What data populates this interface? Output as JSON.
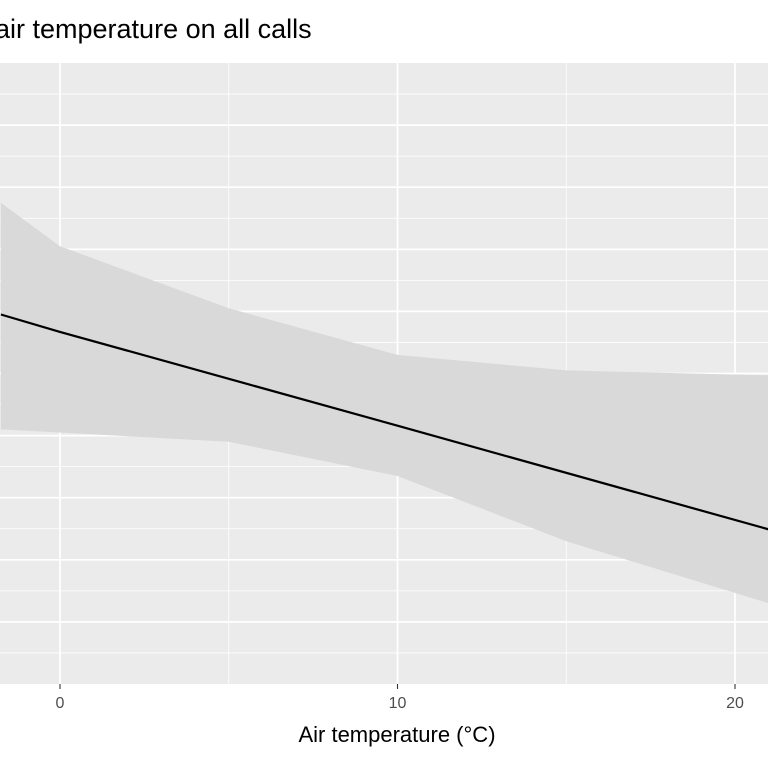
{
  "chart_data": {
    "type": "line",
    "title": "f air temperature on all calls",
    "xlabel": "Air temperature (°C)",
    "ylabel": "",
    "xlim": [
      -1.75,
      21.0
    ],
    "x_ticks": [
      0,
      10,
      20
    ],
    "x_tick_labels": [
      "0",
      "10",
      "20"
    ],
    "ylim": [
      0,
      10
    ],
    "grid": true,
    "series": [
      {
        "x": [
          -1.75,
          0,
          10,
          21.0
        ],
        "values": [
          5.95,
          5.67,
          4.16,
          2.49
        ]
      }
    ],
    "confidence_band": {
      "x": [
        -1.75,
        0,
        5,
        10,
        15,
        21.0
      ],
      "upper": [
        7.75,
        7.05,
        6.05,
        5.3,
        5.05,
        4.97
      ],
      "lower": [
        4.1,
        4.05,
        3.9,
        3.35,
        2.3,
        1.3
      ]
    },
    "colors": {
      "panel": "#ebebeb",
      "grid": "#ffffff",
      "band": "#d9d9d9",
      "line": "#000000"
    }
  }
}
